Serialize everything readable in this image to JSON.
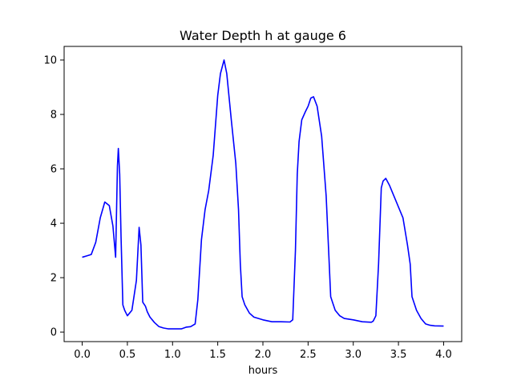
{
  "chart_data": {
    "type": "line",
    "title": "Water Depth h at gauge 6",
    "xlabel": "hours",
    "ylabel": "",
    "xlim": [
      -0.2,
      4.2
    ],
    "ylim": [
      -0.35,
      10.5
    ],
    "x_ticks": [
      0.0,
      0.5,
      1.0,
      1.5,
      2.0,
      2.5,
      3.0,
      3.5,
      4.0
    ],
    "x_tick_labels": [
      "0.0",
      "0.5",
      "1.0",
      "1.5",
      "2.0",
      "2.5",
      "3.0",
      "3.5",
      "4.0"
    ],
    "y_ticks": [
      0,
      2,
      4,
      6,
      8,
      10
    ],
    "y_tick_labels": [
      "0",
      "2",
      "4",
      "6",
      "8",
      "10"
    ],
    "grid": false,
    "series": [
      {
        "color": "#0000ff",
        "x": [
          0.0,
          0.05,
          0.1,
          0.15,
          0.2,
          0.25,
          0.3,
          0.34,
          0.37,
          0.39,
          0.4,
          0.415,
          0.43,
          0.45,
          0.47,
          0.5,
          0.55,
          0.6,
          0.63,
          0.65,
          0.67,
          0.7,
          0.72,
          0.75,
          0.8,
          0.85,
          0.9,
          0.95,
          1.0,
          1.05,
          1.1,
          1.15,
          1.2,
          1.25,
          1.28,
          1.32,
          1.36,
          1.4,
          1.45,
          1.5,
          1.53,
          1.57,
          1.6,
          1.65,
          1.7,
          1.73,
          1.75,
          1.77,
          1.8,
          1.85,
          1.9,
          2.0,
          2.1,
          2.2,
          2.3,
          2.33,
          2.36,
          2.38,
          2.4,
          2.43,
          2.47,
          2.5,
          2.53,
          2.56,
          2.6,
          2.65,
          2.7,
          2.73,
          2.75,
          2.77,
          2.8,
          2.85,
          2.9,
          3.0,
          3.1,
          3.2,
          3.22,
          3.25,
          3.28,
          3.31,
          3.33,
          3.36,
          3.4,
          3.45,
          3.5,
          3.55,
          3.6,
          3.63,
          3.65,
          3.7,
          3.75,
          3.8,
          3.85,
          3.9,
          4.0
        ],
        "values": [
          2.75,
          2.8,
          2.85,
          3.3,
          4.2,
          4.78,
          4.65,
          3.9,
          2.75,
          6.1,
          6.75,
          5.8,
          3.5,
          1.0,
          0.8,
          0.6,
          0.8,
          1.9,
          3.85,
          3.2,
          1.1,
          0.95,
          0.75,
          0.55,
          0.35,
          0.2,
          0.15,
          0.12,
          0.12,
          0.12,
          0.12,
          0.18,
          0.2,
          0.3,
          1.2,
          3.4,
          4.5,
          5.2,
          6.5,
          8.7,
          9.5,
          10.0,
          9.5,
          7.8,
          6.2,
          4.5,
          2.5,
          1.3,
          1.0,
          0.7,
          0.55,
          0.45,
          0.38,
          0.38,
          0.37,
          0.45,
          3.0,
          5.8,
          7.0,
          7.8,
          8.1,
          8.3,
          8.6,
          8.65,
          8.3,
          7.2,
          5.0,
          2.8,
          1.3,
          1.1,
          0.8,
          0.6,
          0.5,
          0.45,
          0.38,
          0.36,
          0.4,
          0.6,
          2.5,
          5.3,
          5.55,
          5.65,
          5.4,
          5.0,
          4.6,
          4.2,
          3.2,
          2.5,
          1.3,
          0.8,
          0.5,
          0.3,
          0.25,
          0.23,
          0.22
        ]
      }
    ]
  }
}
